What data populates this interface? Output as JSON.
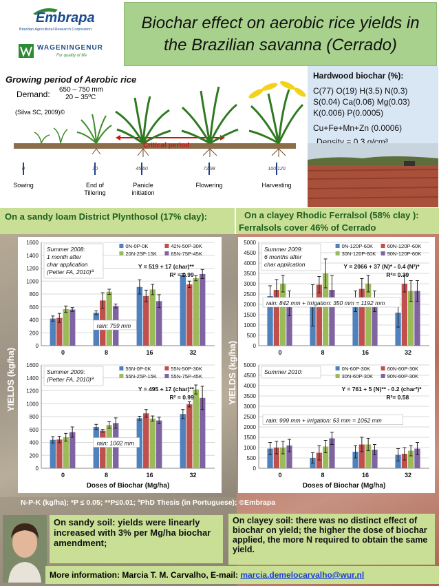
{
  "header": {
    "embrapa_name": "Embrapa",
    "embrapa_subtitle": "Brazilian Agricultural Research Corporation",
    "wur_name": "WAGENINGENUR",
    "wur_tagline": "For quality of life",
    "title_line1": "Biochar effect on aerobic rice yields in",
    "title_line2": "the Brazilian savanna (Cerrado)"
  },
  "growth_period": {
    "title": "Growing period  of Aerobic rice",
    "demand_label": "Demand:",
    "demand_1": "650 – 750 mm",
    "demand_2": "20 – 35ºC",
    "citation": "(Silva SC, 2009)©",
    "critical_label": "Critical period",
    "days": [
      "0",
      "30",
      "45/60",
      "72/98",
      "100/120"
    ],
    "stages": [
      "Sowing",
      "End of Tillering",
      "Panicle initiation",
      "Flowering",
      "Harvesting"
    ]
  },
  "biochar": {
    "heading": "Hardwood biochar (%):",
    "line1": "C(77) O(19) H(3.5)  N(0.3)",
    "line2": "S(0.04) Ca(0.06) Mg(0.03)",
    "line3": "K(0.006) P(0.0005)",
    "line4": "Cu+Fe+Mn+Zn (0.0006)",
    "density": "Density = 0.3 g/cm³"
  },
  "sites": {
    "left": "On a sandy loam District Plynthosol (17% clay):",
    "right_line1": "On a clayey Rhodic Ferralsol (58% clay ):",
    "right_line2": "Ferralsols cover 46% of Cerrado"
  },
  "yields_label": "YIELDS (kg/ha)",
  "doses_label": "Doses of Biochar (Mg/ha)",
  "footnote": "N-P-K (kg/ha); *P ≤ 0.05; **P≤0.01; ªPhD Thesis (in Portuguese); ©Embrapa",
  "conclusion_left": "On sandy soil: yields were linearly increased with 3% per Mg/ha biochar amendment;",
  "conclusion_right": "On clayey soil: there was no distinct effect of biochar on yield; the higher the dose of biochar applied, the more N required to obtain the same yield.",
  "footer_text": "More information: Marcia T. M. Carvalho, E-mail: ",
  "footer_email": "marcia.demelocarvalho@wur.nl",
  "colors": {
    "blue": "#4f81bd",
    "red": "#c0504d",
    "green": "#9bbb59",
    "purple": "#8064a2"
  },
  "chart_data": [
    {
      "type": "bar",
      "categories": [
        "0",
        "8",
        "16",
        "32"
      ],
      "xlabel": "",
      "ylim": [
        0,
        1600
      ],
      "yticks": [
        0,
        200,
        400,
        600,
        800,
        1000,
        1200,
        1400,
        1600
      ],
      "note_lines": [
        "Summer 2008:",
        "1 month after",
        "char application",
        "(Petter FA, 2010)ª"
      ],
      "equation": "Y = 519 + 17 (char)**",
      "r2": "R² = 0.99",
      "rain": "rain: 759 mm",
      "series": [
        {
          "name": "0N-0P-0K",
          "values": [
            420,
            510,
            910,
            1095
          ],
          "err": [
            40,
            30,
            110,
            20
          ]
        },
        {
          "name": "42N-50P-30K",
          "values": [
            430,
            700,
            770,
            950
          ],
          "err": [
            70,
            120,
            90,
            50
          ]
        },
        {
          "name": "20N-25P-15K",
          "values": [
            565,
            835,
            870,
            1045
          ],
          "err": [
            50,
            40,
            80,
            40
          ]
        },
        {
          "name": "65N-75P-45K",
          "values": [
            560,
            615,
            690,
            1110
          ],
          "err": [
            30,
            30,
            100,
            70
          ]
        }
      ]
    },
    {
      "type": "bar",
      "categories": [
        "0",
        "8",
        "16",
        "32"
      ],
      "xlabel": "Doses of Biochar (Mg/ha)",
      "ylim": [
        0,
        1600
      ],
      "yticks": [
        0,
        200,
        400,
        600,
        800,
        1000,
        1200,
        1400,
        1600
      ],
      "note_lines": [
        "Summer 2009:",
        "(Petter FA, 2010)ª"
      ],
      "equation": "Y = 495 + 17 (char)**",
      "r2": "R² = 0.99",
      "rain": "rain: 1002 mm",
      "series": [
        {
          "name": "55N-0P-0K",
          "values": [
            440,
            640,
            775,
            840
          ],
          "err": [
            50,
            40,
            30,
            70
          ]
        },
        {
          "name": "55N-50P-30K",
          "values": [
            445,
            580,
            850,
            990
          ],
          "err": [
            50,
            20,
            60,
            40
          ]
        },
        {
          "name": "55N-25P-15K",
          "values": [
            480,
            670,
            770,
            1220
          ],
          "err": [
            60,
            50,
            40,
            70
          ]
        },
        {
          "name": "55N-75P-45K",
          "values": [
            560,
            700,
            740,
            1090
          ],
          "err": [
            80,
            80,
            50,
            180
          ]
        }
      ]
    },
    {
      "type": "bar",
      "categories": [
        "0",
        "8",
        "16",
        "32"
      ],
      "xlabel": "",
      "ylim": [
        0,
        5000
      ],
      "yticks": [
        0,
        500,
        1000,
        1500,
        2000,
        2500,
        3000,
        3500,
        4000,
        4500,
        5000
      ],
      "note_lines": [
        "Summer 2009:",
        "6 months after",
        "char application"
      ],
      "equation": "Y = 2066 + 37 (N)* - 0.4 (N²)*",
      "r2": "R²= 0.39",
      "rain": "rain: 842 mm + Irrigation: 350 mm = 1192 mm",
      "series": [
        {
          "name": "0N-120P-60K",
          "values": [
            2400,
            1950,
            2150,
            1600
          ],
          "err": [
            500,
            1000,
            500,
            700
          ]
        },
        {
          "name": "60N-120P-60K",
          "values": [
            2700,
            2950,
            2750,
            3000
          ],
          "err": [
            500,
            400,
            500,
            400
          ]
        },
        {
          "name": "30N-120P-60K",
          "values": [
            3000,
            3500,
            3000,
            2650
          ],
          "err": [
            400,
            700,
            400,
            500
          ]
        },
        {
          "name": "90N-120P-60K",
          "values": [
            2050,
            2700,
            2150,
            2650
          ],
          "err": [
            600,
            700,
            500,
            500
          ]
        }
      ]
    },
    {
      "type": "bar",
      "categories": [
        "0",
        "8",
        "16",
        "32"
      ],
      "xlabel": "Doses of Biochar (Mg/ha)",
      "ylim": [
        0,
        5000
      ],
      "yticks": [
        0,
        500,
        1000,
        1500,
        2000,
        2500,
        3000,
        3500,
        4000,
        4500,
        5000
      ],
      "note_lines": [
        "Summer 2010:"
      ],
      "equation": "Y = 761 + 5 (N)** - 0.2 (char²)*",
      "r2": "R²= 0.58",
      "rain": "rain: 999 mm + irrigation: 53 mm  =  1052 mm",
      "series": [
        {
          "name": "0N-60P-30K",
          "values": [
            950,
            500,
            800,
            650
          ],
          "err": [
            300,
            250,
            300,
            300
          ]
        },
        {
          "name": "60N-60P-30K",
          "values": [
            1000,
            750,
            1150,
            700
          ],
          "err": [
            300,
            350,
            350,
            300
          ]
        },
        {
          "name": "30N-60P-30K",
          "values": [
            1000,
            1050,
            1150,
            850
          ],
          "err": [
            300,
            300,
            300,
            250
          ]
        },
        {
          "name": "90N-60P-30K",
          "values": [
            1100,
            1450,
            900,
            950
          ],
          "err": [
            300,
            300,
            250,
            300
          ]
        }
      ]
    }
  ]
}
